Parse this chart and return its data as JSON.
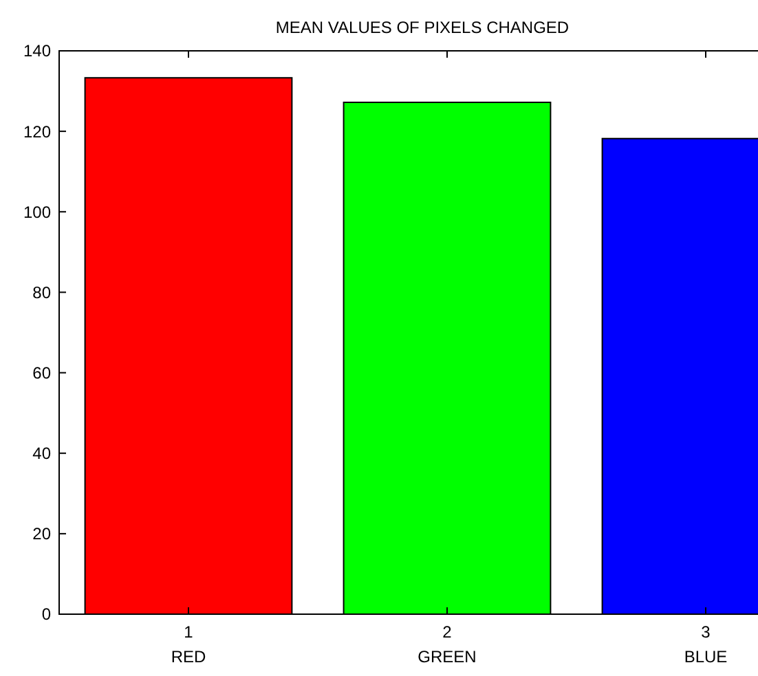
{
  "chart_data": {
    "type": "bar",
    "title": "MEAN VALUES OF PIXELS CHANGED",
    "categories": [
      "1",
      "2",
      "3"
    ],
    "values": [
      133.3,
      127.2,
      118.2
    ],
    "colors": [
      "#ff0000",
      "#00ff00",
      "#0000ff"
    ],
    "ylim": [
      0,
      140
    ],
    "yticks": [
      0,
      20,
      40,
      60,
      80,
      100,
      120,
      140
    ],
    "grid": false,
    "annotations": [
      "RED",
      "GREEN",
      "BLUE"
    ]
  }
}
